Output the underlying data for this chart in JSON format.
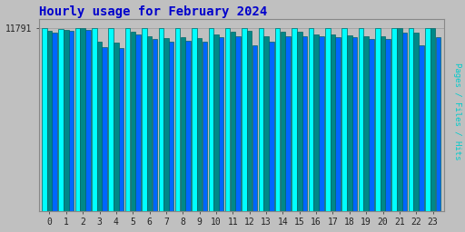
{
  "title": "Hourly usage for February 2024",
  "title_color": "#0000cc",
  "background_color": "#c0c0c0",
  "plot_bg_color": "#c0c0c0",
  "hours": [
    0,
    1,
    2,
    3,
    4,
    5,
    6,
    7,
    8,
    9,
    10,
    11,
    12,
    13,
    14,
    15,
    16,
    17,
    18,
    19,
    20,
    21,
    22,
    23
  ],
  "hits": [
    11791,
    11750,
    11791,
    11791,
    11791,
    11791,
    11791,
    11791,
    11791,
    11791,
    11791,
    11791,
    11791,
    11791,
    11791,
    11791,
    11791,
    11791,
    11791,
    11791,
    11791,
    11791,
    11791,
    11791
  ],
  "pages": [
    11650,
    11680,
    11791,
    10900,
    10850,
    11550,
    11300,
    11150,
    11200,
    11150,
    11400,
    11550,
    11650,
    11250,
    11550,
    11550,
    11400,
    11400,
    11350,
    11250,
    11250,
    11791,
    11500,
    11791
  ],
  "files": [
    11500,
    11600,
    11700,
    10600,
    10500,
    11400,
    11100,
    10900,
    11000,
    10900,
    11200,
    11300,
    10700,
    10900,
    11250,
    11300,
    11300,
    11200,
    11200,
    11100,
    11100,
    11500,
    10700,
    11200
  ],
  "bar_color_hits": "#00ffff",
  "bar_color_pages": "#008888",
  "bar_color_files": "#0066ff",
  "bar_edge_color": "#006666",
  "ymax": 12400,
  "ymin": 0,
  "ytick_value": 11791,
  "ytick_label": "11791",
  "grid_color": "#999999",
  "font_family": "monospace",
  "font_size_title": 10,
  "font_size_tick": 7,
  "ylabel_text": "Pages / Files / Hits",
  "ylabel_color": "#00cccc"
}
